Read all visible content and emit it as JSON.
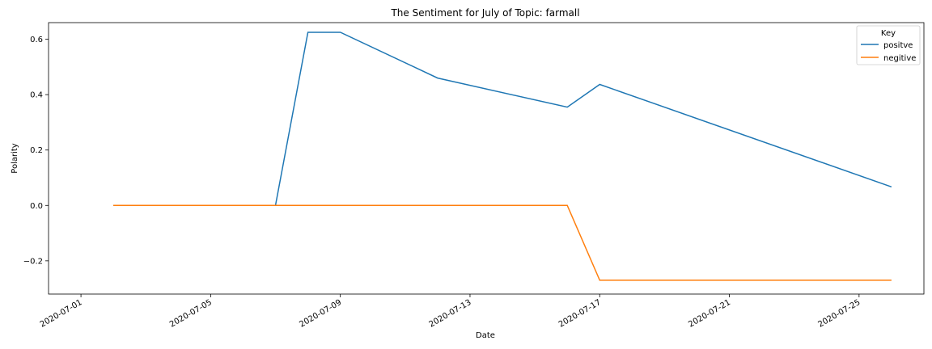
{
  "chart_data": {
    "type": "line",
    "title": "The Sentiment for July of Topic: farmall",
    "xlabel": "Date",
    "ylabel": "Polarity",
    "xlim": [
      "2020-06-30",
      "2020-07-27"
    ],
    "ylim": [
      -0.32,
      0.66
    ],
    "x_ticks": [
      "2020-07-01",
      "2020-07-05",
      "2020-07-09",
      "2020-07-13",
      "2020-07-17",
      "2020-07-21",
      "2020-07-25"
    ],
    "y_ticks": [
      0.6,
      0.4,
      0.2,
      0.0,
      -0.2
    ],
    "y_tick_labels": [
      "0.6",
      "0.4",
      "0.2",
      "0.0",
      "−0.2"
    ],
    "grid": false,
    "legend": {
      "title": "Key",
      "placement": "top-right"
    },
    "series": [
      {
        "name": "positve",
        "color": "#1f77b4",
        "x": [
          "2020-07-02",
          "2020-07-07",
          "2020-07-08",
          "2020-07-09",
          "2020-07-12",
          "2020-07-16",
          "2020-07-17",
          "2020-07-26"
        ],
        "values": [
          0.0,
          0.0,
          0.625,
          0.625,
          0.46,
          0.355,
          0.437,
          0.067
        ]
      },
      {
        "name": "negitive",
        "color": "#ff7f0e",
        "x": [
          "2020-07-02",
          "2020-07-16",
          "2020-07-17",
          "2020-07-26"
        ],
        "values": [
          0.0,
          0.0,
          -0.27,
          -0.27
        ]
      }
    ]
  }
}
